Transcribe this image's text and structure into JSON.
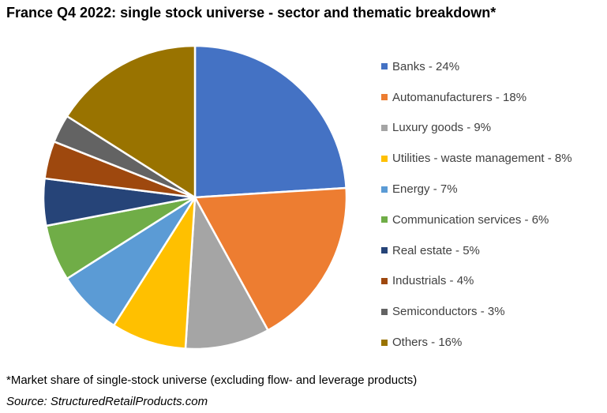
{
  "chart_data": {
    "type": "pie",
    "title": "France Q4 2022: single stock universe - sector and thematic breakdown*",
    "legend_position": "right",
    "slices": [
      {
        "label": "Banks - 24%",
        "value": 24,
        "color": "#4472C4"
      },
      {
        "label": "Automanufacturers - 18%",
        "value": 18,
        "color": "#ED7D31"
      },
      {
        "label": "Luxury goods - 9%",
        "value": 9,
        "color": "#A5A5A5"
      },
      {
        "label": "Utilities - waste management - 8%",
        "value": 8,
        "color": "#FFC000"
      },
      {
        "label": "Energy - 7%",
        "value": 7,
        "color": "#5B9BD5"
      },
      {
        "label": "Communication services - 6%",
        "value": 6,
        "color": "#70AD47"
      },
      {
        "label": "Real estate - 5%",
        "value": 5,
        "color": "#264478"
      },
      {
        "label": "Industrials - 4%",
        "value": 4,
        "color": "#9E480E"
      },
      {
        "label": "Semiconductors - 3%",
        "value": 3,
        "color": "#636363"
      },
      {
        "label": "Others - 16%",
        "value": 16,
        "color": "#997300"
      }
    ]
  },
  "footnote": "*Market share of single-stock universe (excluding flow- and leverage products)",
  "source": "Source: StructuredRetailProducts.com"
}
